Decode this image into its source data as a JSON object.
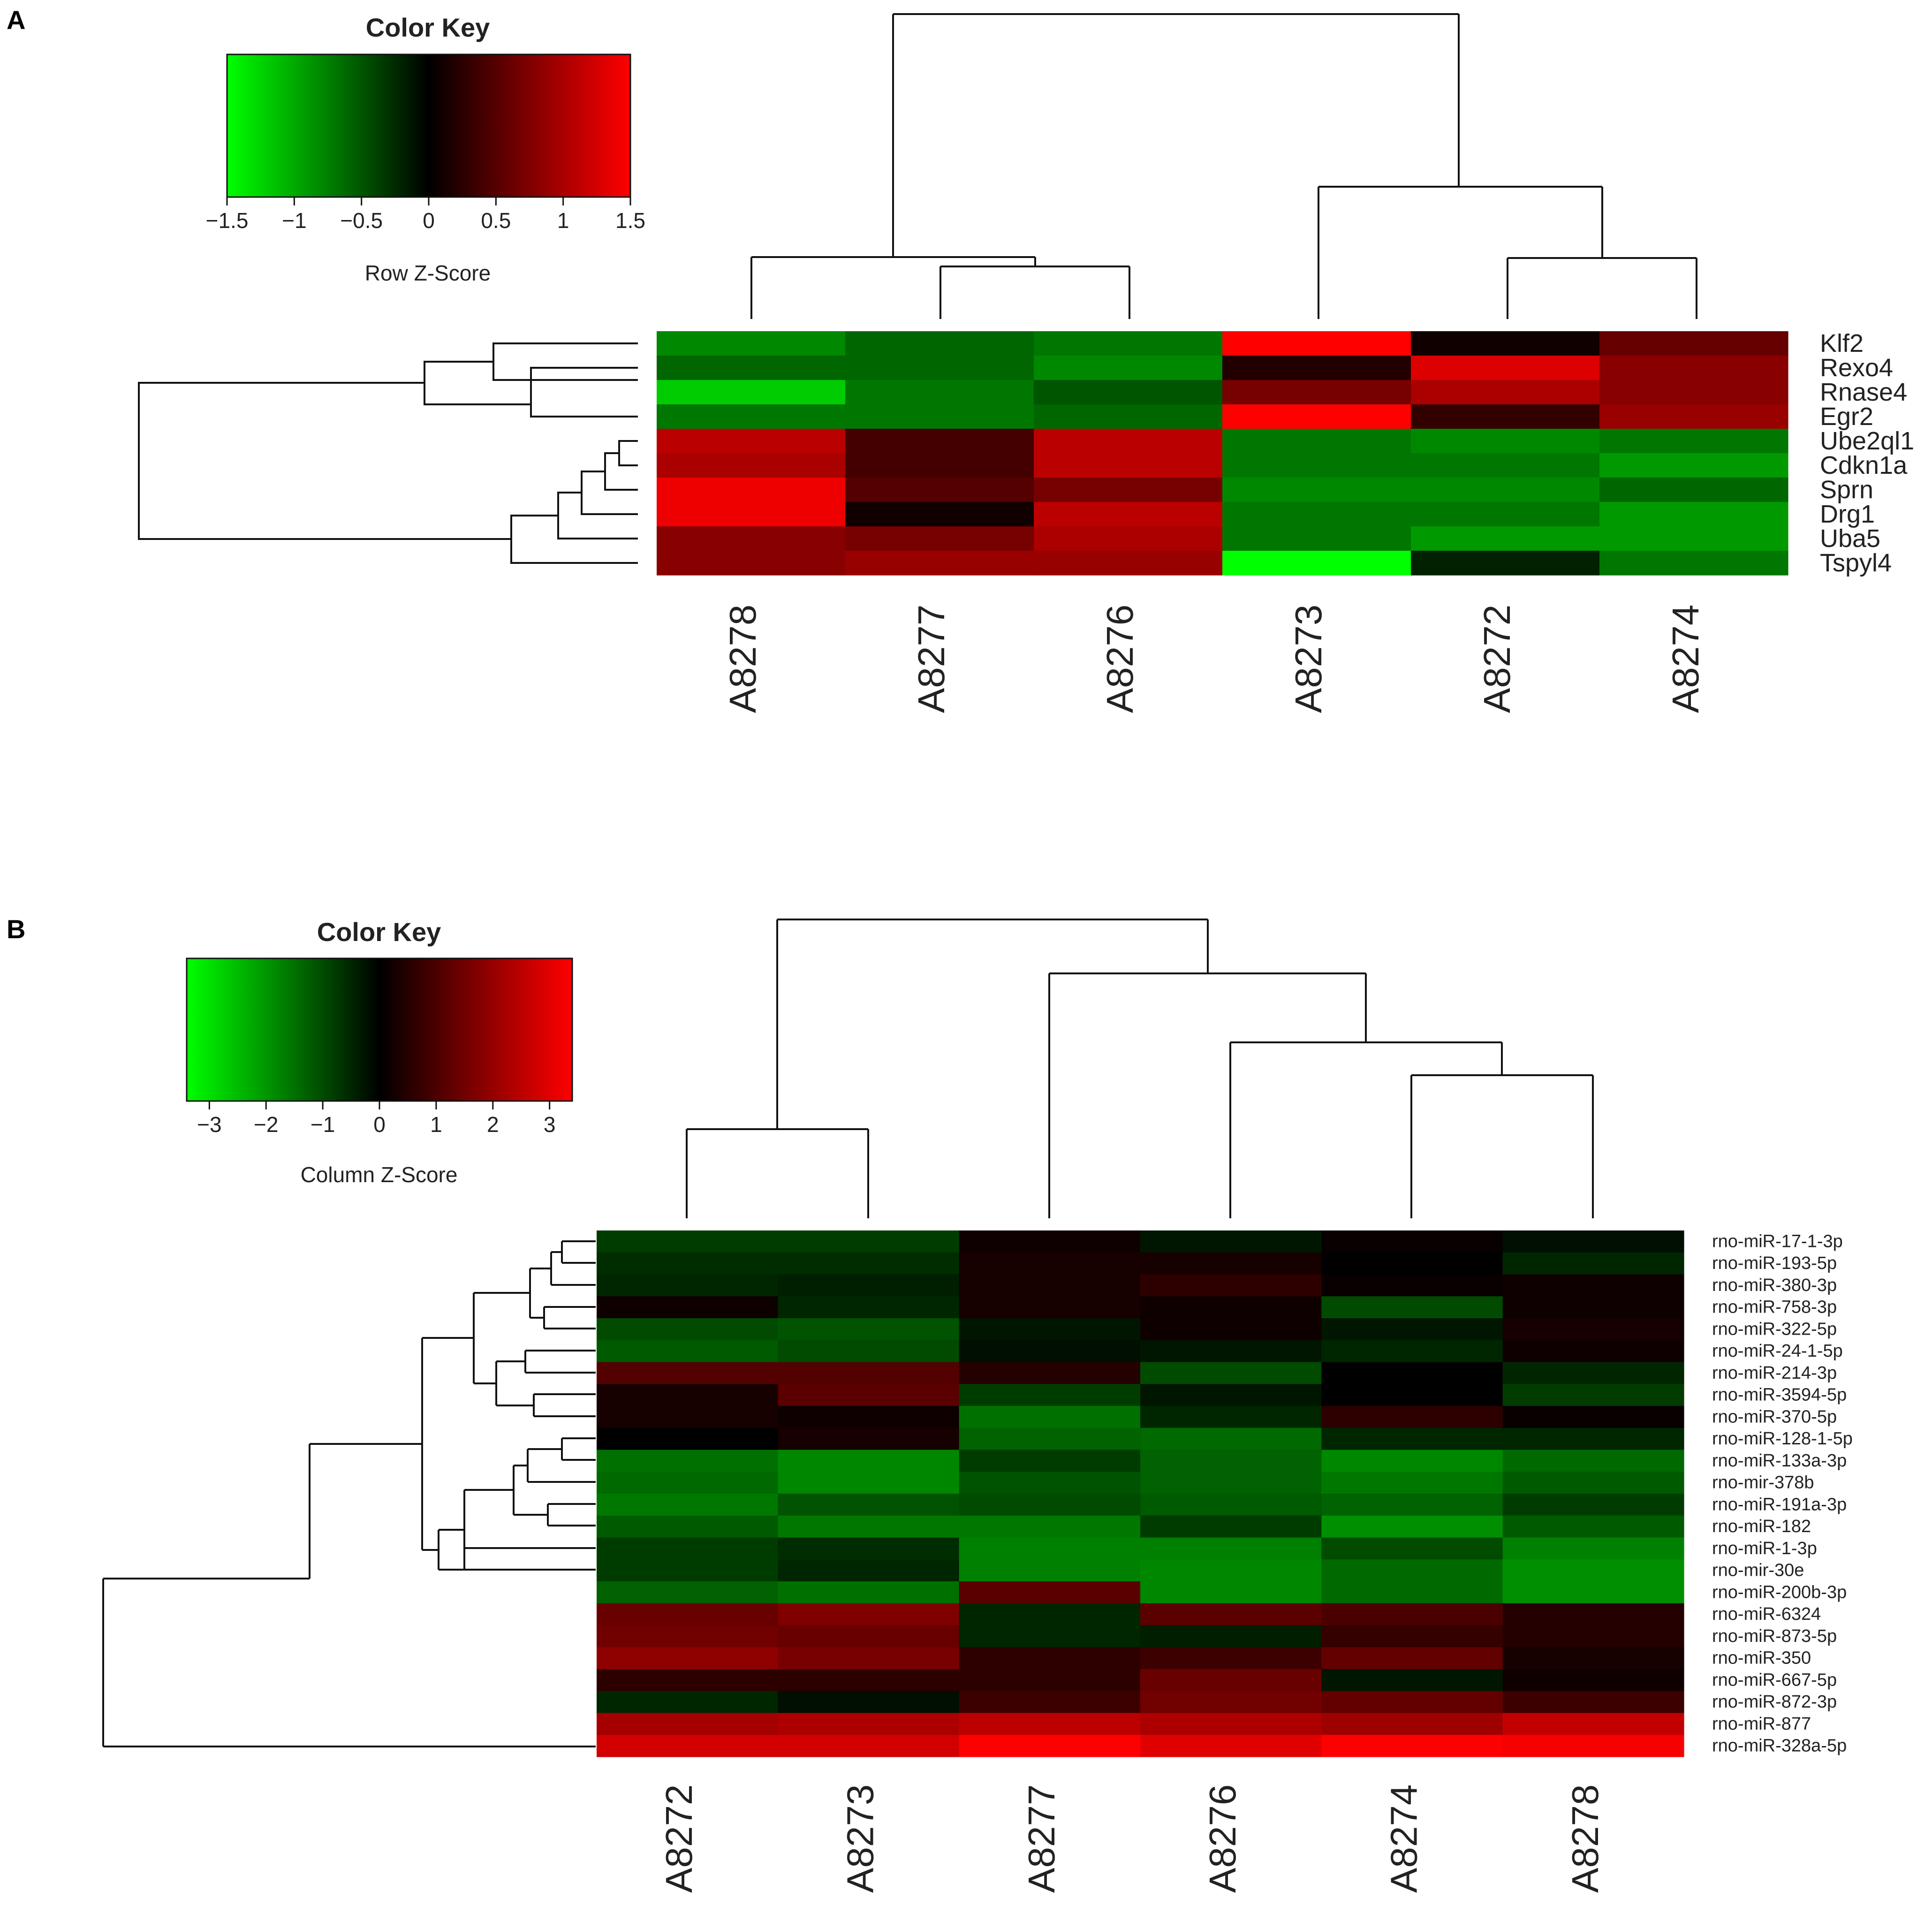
{
  "chart_data": [
    {
      "panel": "A",
      "type": "heatmap",
      "key": {
        "title": "Color Key",
        "label": "Row Z-Score",
        "ticks": [
          "-1.5",
          "-1",
          "-0.5",
          "0",
          "0.5",
          "1",
          "1.5"
        ],
        "range": [
          -1.5,
          1.5
        ],
        "low_color": "#00ff00",
        "mid_color": "#000000",
        "high_color": "#ff0000"
      },
      "columns": [
        "A8278",
        "A8277",
        "A8276",
        "A8273",
        "A8272",
        "A8274"
      ],
      "rows": [
        "Klf2",
        "Rexo4",
        "Rnase4",
        "Egr2",
        "Ube2ql1",
        "Cdkn1a",
        "Sprn",
        "Drg1",
        "Uba5",
        "Tspyl4"
      ],
      "values": [
        [
          -0.8,
          -0.6,
          -0.7,
          1.5,
          0.1,
          0.6
        ],
        [
          -0.6,
          -0.6,
          -0.8,
          0.2,
          1.3,
          0.8
        ],
        [
          -1.2,
          -0.7,
          -0.5,
          0.7,
          1.0,
          0.8
        ],
        [
          -0.7,
          -0.7,
          -0.6,
          1.5,
          0.3,
          0.9
        ],
        [
          1.1,
          0.4,
          1.1,
          -0.7,
          -0.8,
          -0.7
        ],
        [
          1.0,
          0.4,
          1.1,
          -0.7,
          -0.7,
          -0.9
        ],
        [
          1.4,
          0.5,
          0.7,
          -0.8,
          -0.8,
          -0.6
        ],
        [
          1.4,
          0.1,
          1.1,
          -0.7,
          -0.7,
          -0.9
        ],
        [
          0.8,
          0.7,
          1.0,
          -0.7,
          -0.9,
          -0.9
        ],
        [
          0.8,
          0.9,
          0.9,
          -1.5,
          -0.2,
          -0.7
        ]
      ]
    },
    {
      "panel": "B",
      "type": "heatmap",
      "key": {
        "title": "Color Key",
        "label": "Column Z-Score",
        "ticks": [
          "-3",
          "-2",
          "-1",
          "0",
          "1",
          "2",
          "3"
        ],
        "range": [
          -3.4,
          3.4
        ],
        "low_color": "#00ff00",
        "mid_color": "#000000",
        "high_color": "#ff0000"
      },
      "columns": [
        "A8272",
        "A8273",
        "A8277",
        "A8276",
        "A8274",
        "A8278"
      ],
      "rows": [
        "rno-miR-17-1-3p",
        "rno-miR-193-5p",
        "rno-miR-380-3p",
        "rno-miR-758-3p",
        "rno-miR-322-5p",
        "rno-miR-24-1-5p",
        "rno-miR-214-3p",
        "rno-miR-3594-5p",
        "rno-miR-370-5p",
        "rno-miR-128-1-5p",
        "rno-miR-133a-3p",
        "rno-mir-378b",
        "rno-miR-191a-3p",
        "rno-miR-182",
        "rno-miR-1-3p",
        "rno-mir-30e",
        "rno-miR-200b-3p",
        "rno-miR-6324",
        "rno-miR-873-5p",
        "rno-miR-350",
        "rno-miR-667-5p",
        "rno-miR-872-3p",
        "rno-miR-877",
        "rno-miR-328a-5p"
      ],
      "values": [
        [
          -0.8,
          -0.8,
          0.2,
          -0.3,
          0.1,
          -0.2
        ],
        [
          -0.6,
          -0.6,
          0.3,
          0.3,
          0.0,
          -0.5
        ],
        [
          -0.5,
          -0.4,
          0.3,
          0.6,
          0.1,
          0.2
        ],
        [
          0.2,
          -0.5,
          0.3,
          0.2,
          -1.0,
          0.2
        ],
        [
          -1.0,
          -1.1,
          -0.3,
          0.2,
          -0.3,
          0.3
        ],
        [
          -1.2,
          -1.0,
          -0.2,
          -0.3,
          -0.5,
          0.2
        ],
        [
          1.1,
          1.1,
          0.5,
          -1.0,
          0.0,
          -0.5
        ],
        [
          0.3,
          1.2,
          -0.8,
          -0.3,
          0.0,
          -0.8
        ],
        [
          0.3,
          0.2,
          -1.5,
          -0.5,
          0.6,
          0.1
        ],
        [
          0.0,
          0.3,
          -1.3,
          -1.4,
          -0.5,
          -0.5
        ],
        [
          -1.5,
          -1.8,
          -0.8,
          -1.3,
          -1.8,
          -1.4
        ],
        [
          -1.4,
          -1.8,
          -1.1,
          -1.3,
          -1.6,
          -1.2
        ],
        [
          -1.6,
          -1.1,
          -1.0,
          -1.2,
          -1.3,
          -0.8
        ],
        [
          -1.2,
          -1.6,
          -1.6,
          -0.8,
          -1.9,
          -1.2
        ],
        [
          -0.8,
          -0.6,
          -1.7,
          -1.7,
          -1.0,
          -1.7
        ],
        [
          -0.8,
          -0.5,
          -1.7,
          -1.8,
          -1.4,
          -1.9
        ],
        [
          -1.3,
          -1.5,
          1.2,
          -1.8,
          -1.4,
          -1.9
        ],
        [
          1.4,
          1.7,
          -0.5,
          1.2,
          1.0,
          0.5
        ],
        [
          1.5,
          1.4,
          -0.5,
          -0.4,
          0.7,
          0.5
        ],
        [
          1.9,
          1.6,
          0.6,
          0.8,
          1.3,
          0.3
        ],
        [
          0.6,
          0.6,
          0.6,
          1.4,
          -0.3,
          0.2
        ],
        [
          -0.5,
          -0.2,
          0.8,
          1.5,
          1.3,
          0.8
        ],
        [
          2.2,
          2.3,
          2.5,
          2.3,
          2.1,
          2.6
        ],
        [
          2.8,
          2.8,
          3.4,
          3.0,
          3.4,
          3.3
        ]
      ]
    }
  ]
}
